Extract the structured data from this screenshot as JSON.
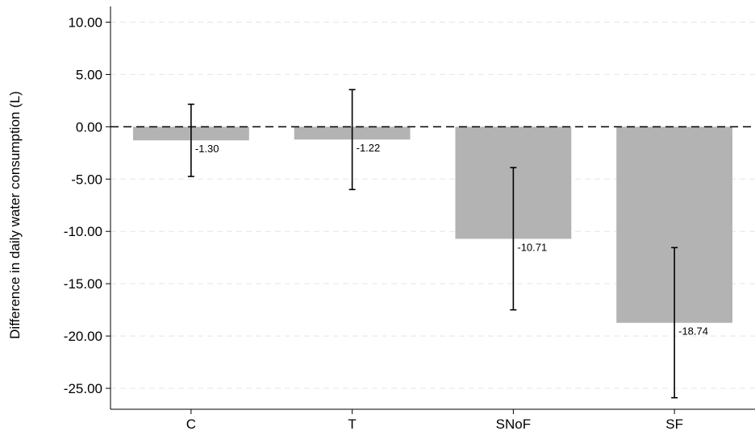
{
  "chart_data": {
    "type": "bar",
    "categories": [
      "C",
      "T",
      "SNoF",
      "SF"
    ],
    "values": [
      -1.3,
      -1.22,
      -10.71,
      -18.74
    ],
    "value_labels": [
      "-1.30",
      "-1.22",
      "-10.71",
      "-18.74"
    ],
    "error_bars": [
      {
        "low": -4.75,
        "high": 2.15
      },
      {
        "low": -6.0,
        "high": 3.55
      },
      {
        "low": -17.5,
        "high": -3.9
      },
      {
        "low": -25.9,
        "high": -11.55
      }
    ],
    "ylabel": "Difference in daily water consumption (L)",
    "xlabel": "",
    "title": "",
    "ylim": [
      -27.0,
      11.5
    ],
    "yticks": [
      10,
      5,
      0,
      -5,
      -10,
      -15,
      -20,
      -25
    ],
    "ytick_labels": [
      "10.00",
      "5.00",
      "0.00",
      "-5.00",
      "-10.00",
      "-15.00",
      "-20.00",
      "-25.00"
    ],
    "reference_line": 0,
    "grid": true,
    "colors": {
      "bar": "#b3b3b3",
      "error_bar": "#000000",
      "grid": "#e5e5e5",
      "reference_line": "#000000"
    }
  }
}
